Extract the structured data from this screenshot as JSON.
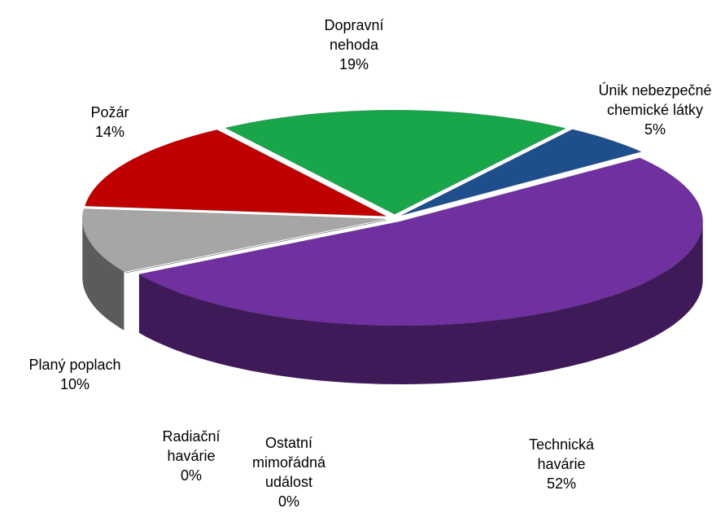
{
  "chart_data": {
    "type": "pie3d",
    "categories": [
      "Dopravní nehoda",
      "Únik nebezpečné chemické látky",
      "Technická havárie",
      "Ostatní mimořádná událost",
      "Radiační havárie",
      "Planý poplach",
      "Požár"
    ],
    "values": [
      19,
      5,
      52,
      0,
      0,
      10,
      14
    ],
    "value_labels": [
      "19%",
      "5%",
      "52%",
      "0%",
      "0%",
      "10%",
      "14%"
    ],
    "colors": [
      "#19a54a",
      "#1f4e8c",
      "#7030a0",
      "#b07a00",
      "#c05000",
      "#a6a6a6",
      "#c00000"
    ]
  }
}
